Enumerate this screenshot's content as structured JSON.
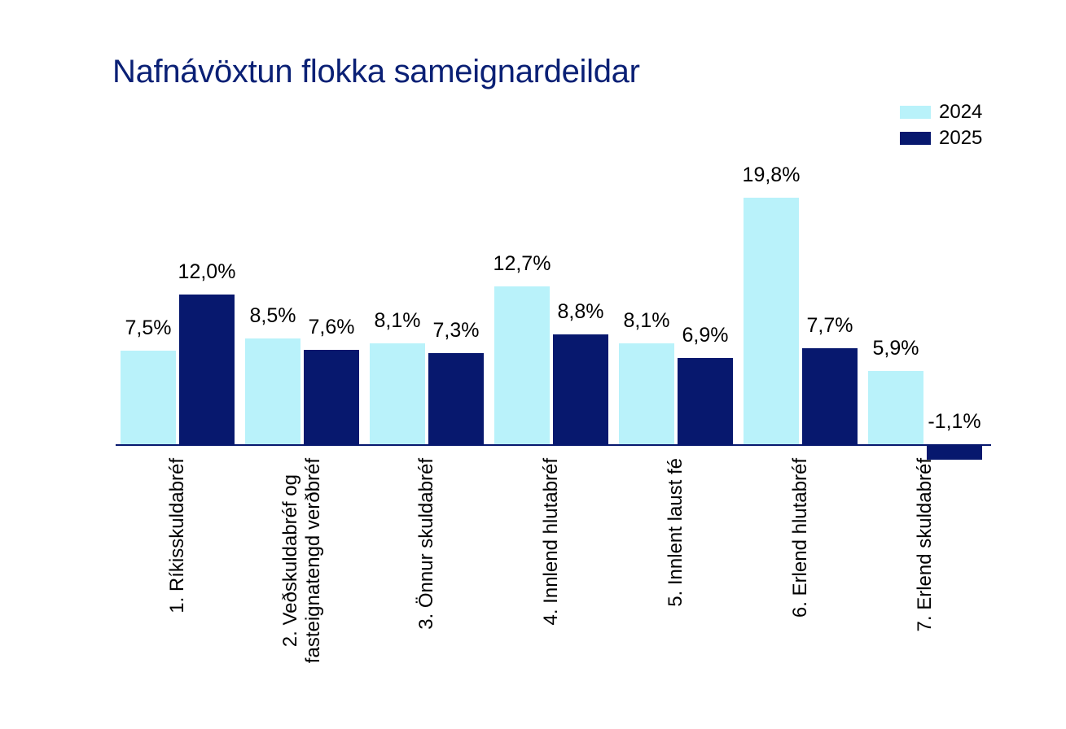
{
  "page": {
    "background": "#ffffff"
  },
  "chart_data": {
    "type": "bar",
    "title": "Nafnávöxtun flokka sameignardeildar",
    "title_color": "#0a2075",
    "categories": [
      "1. Ríkisskuldabréf",
      "2. Veðskuldabréf og\nfasteignatengd verðbréf",
      "3. Önnur skuldabréf",
      "4. Innlend hlutabréf",
      "5. Innlent laust fé",
      "6. Erlend hlutabréf",
      "7. Erlend skuldabréf"
    ],
    "series": [
      {
        "name": "2024",
        "color": "#b9f2fa",
        "values": [
          7.5,
          8.5,
          8.1,
          12.7,
          8.1,
          19.8,
          5.9
        ],
        "value_labels": [
          "7,5%",
          "8,5%",
          "8,1%",
          "12,7%",
          "8,1%",
          "19,8%",
          "5,9%"
        ]
      },
      {
        "name": "2025",
        "color": "#07186e",
        "values": [
          12.0,
          7.6,
          7.3,
          8.8,
          6.9,
          7.7,
          -1.1
        ],
        "value_labels": [
          "12,0%",
          "7,6%",
          "7,3%",
          "8,8%",
          "6,9%",
          "7,7%",
          "-1,1%"
        ]
      }
    ],
    "axis_color": "#07186e",
    "value_label_color": "#000000",
    "category_label_color": "#000000",
    "legend_position": "top-right",
    "grid": false,
    "baseline": 0,
    "xlabel": "",
    "ylabel": ""
  }
}
